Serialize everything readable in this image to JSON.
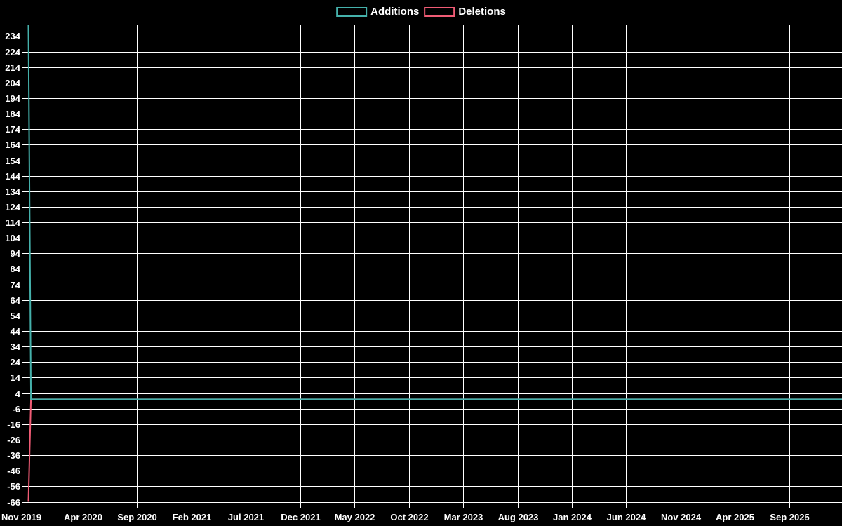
{
  "legend": {
    "items": [
      {
        "label": "Additions",
        "color": "#45b1ab"
      },
      {
        "label": "Deletions",
        "color": "#f05c75"
      }
    ]
  },
  "chart_data": {
    "type": "line",
    "title": "",
    "xlabel": "",
    "ylabel": "",
    "background_color": "#000000",
    "grid": true,
    "grid_color": "#ffffff",
    "text_color": "#ffffff",
    "legend_position": "top-center",
    "x_unit": "weeks",
    "weeks_per_tick": 21.7,
    "x_tick_labels": [
      "Nov 2019",
      "Apr 2020",
      "Sep 2020",
      "Feb 2021",
      "Jul 2021",
      "Dec 2021",
      "May 2022",
      "Oct 2022",
      "Mar 2023",
      "Aug 2023",
      "Jan 2024",
      "Jun 2024",
      "Nov 2024",
      "Apr 2025",
      "Sep 2025"
    ],
    "y_ticks": [
      234,
      224,
      214,
      204,
      194,
      184,
      174,
      164,
      154,
      144,
      134,
      124,
      114,
      104,
      94,
      84,
      74,
      64,
      54,
      44,
      34,
      24,
      14,
      4,
      -6,
      -16,
      -26,
      -36,
      -46,
      -56,
      -66
    ],
    "ylim": [
      -66,
      241
    ],
    "series": [
      {
        "name": "Additions",
        "color": "#45b1ab",
        "points_weeks": [
          [
            0,
            241
          ],
          [
            1,
            0
          ],
          [
            325,
            0
          ]
        ],
        "description": "241 additions in the first week (Nov 2019), ~0 for all later weeks"
      },
      {
        "name": "Deletions",
        "color": "#f05c75",
        "points_weeks": [
          [
            0,
            -66
          ],
          [
            1,
            0
          ],
          [
            325,
            0
          ]
        ],
        "description": "-66 deletions in the first week (Nov 2019), ~0 for all later weeks"
      }
    ]
  }
}
